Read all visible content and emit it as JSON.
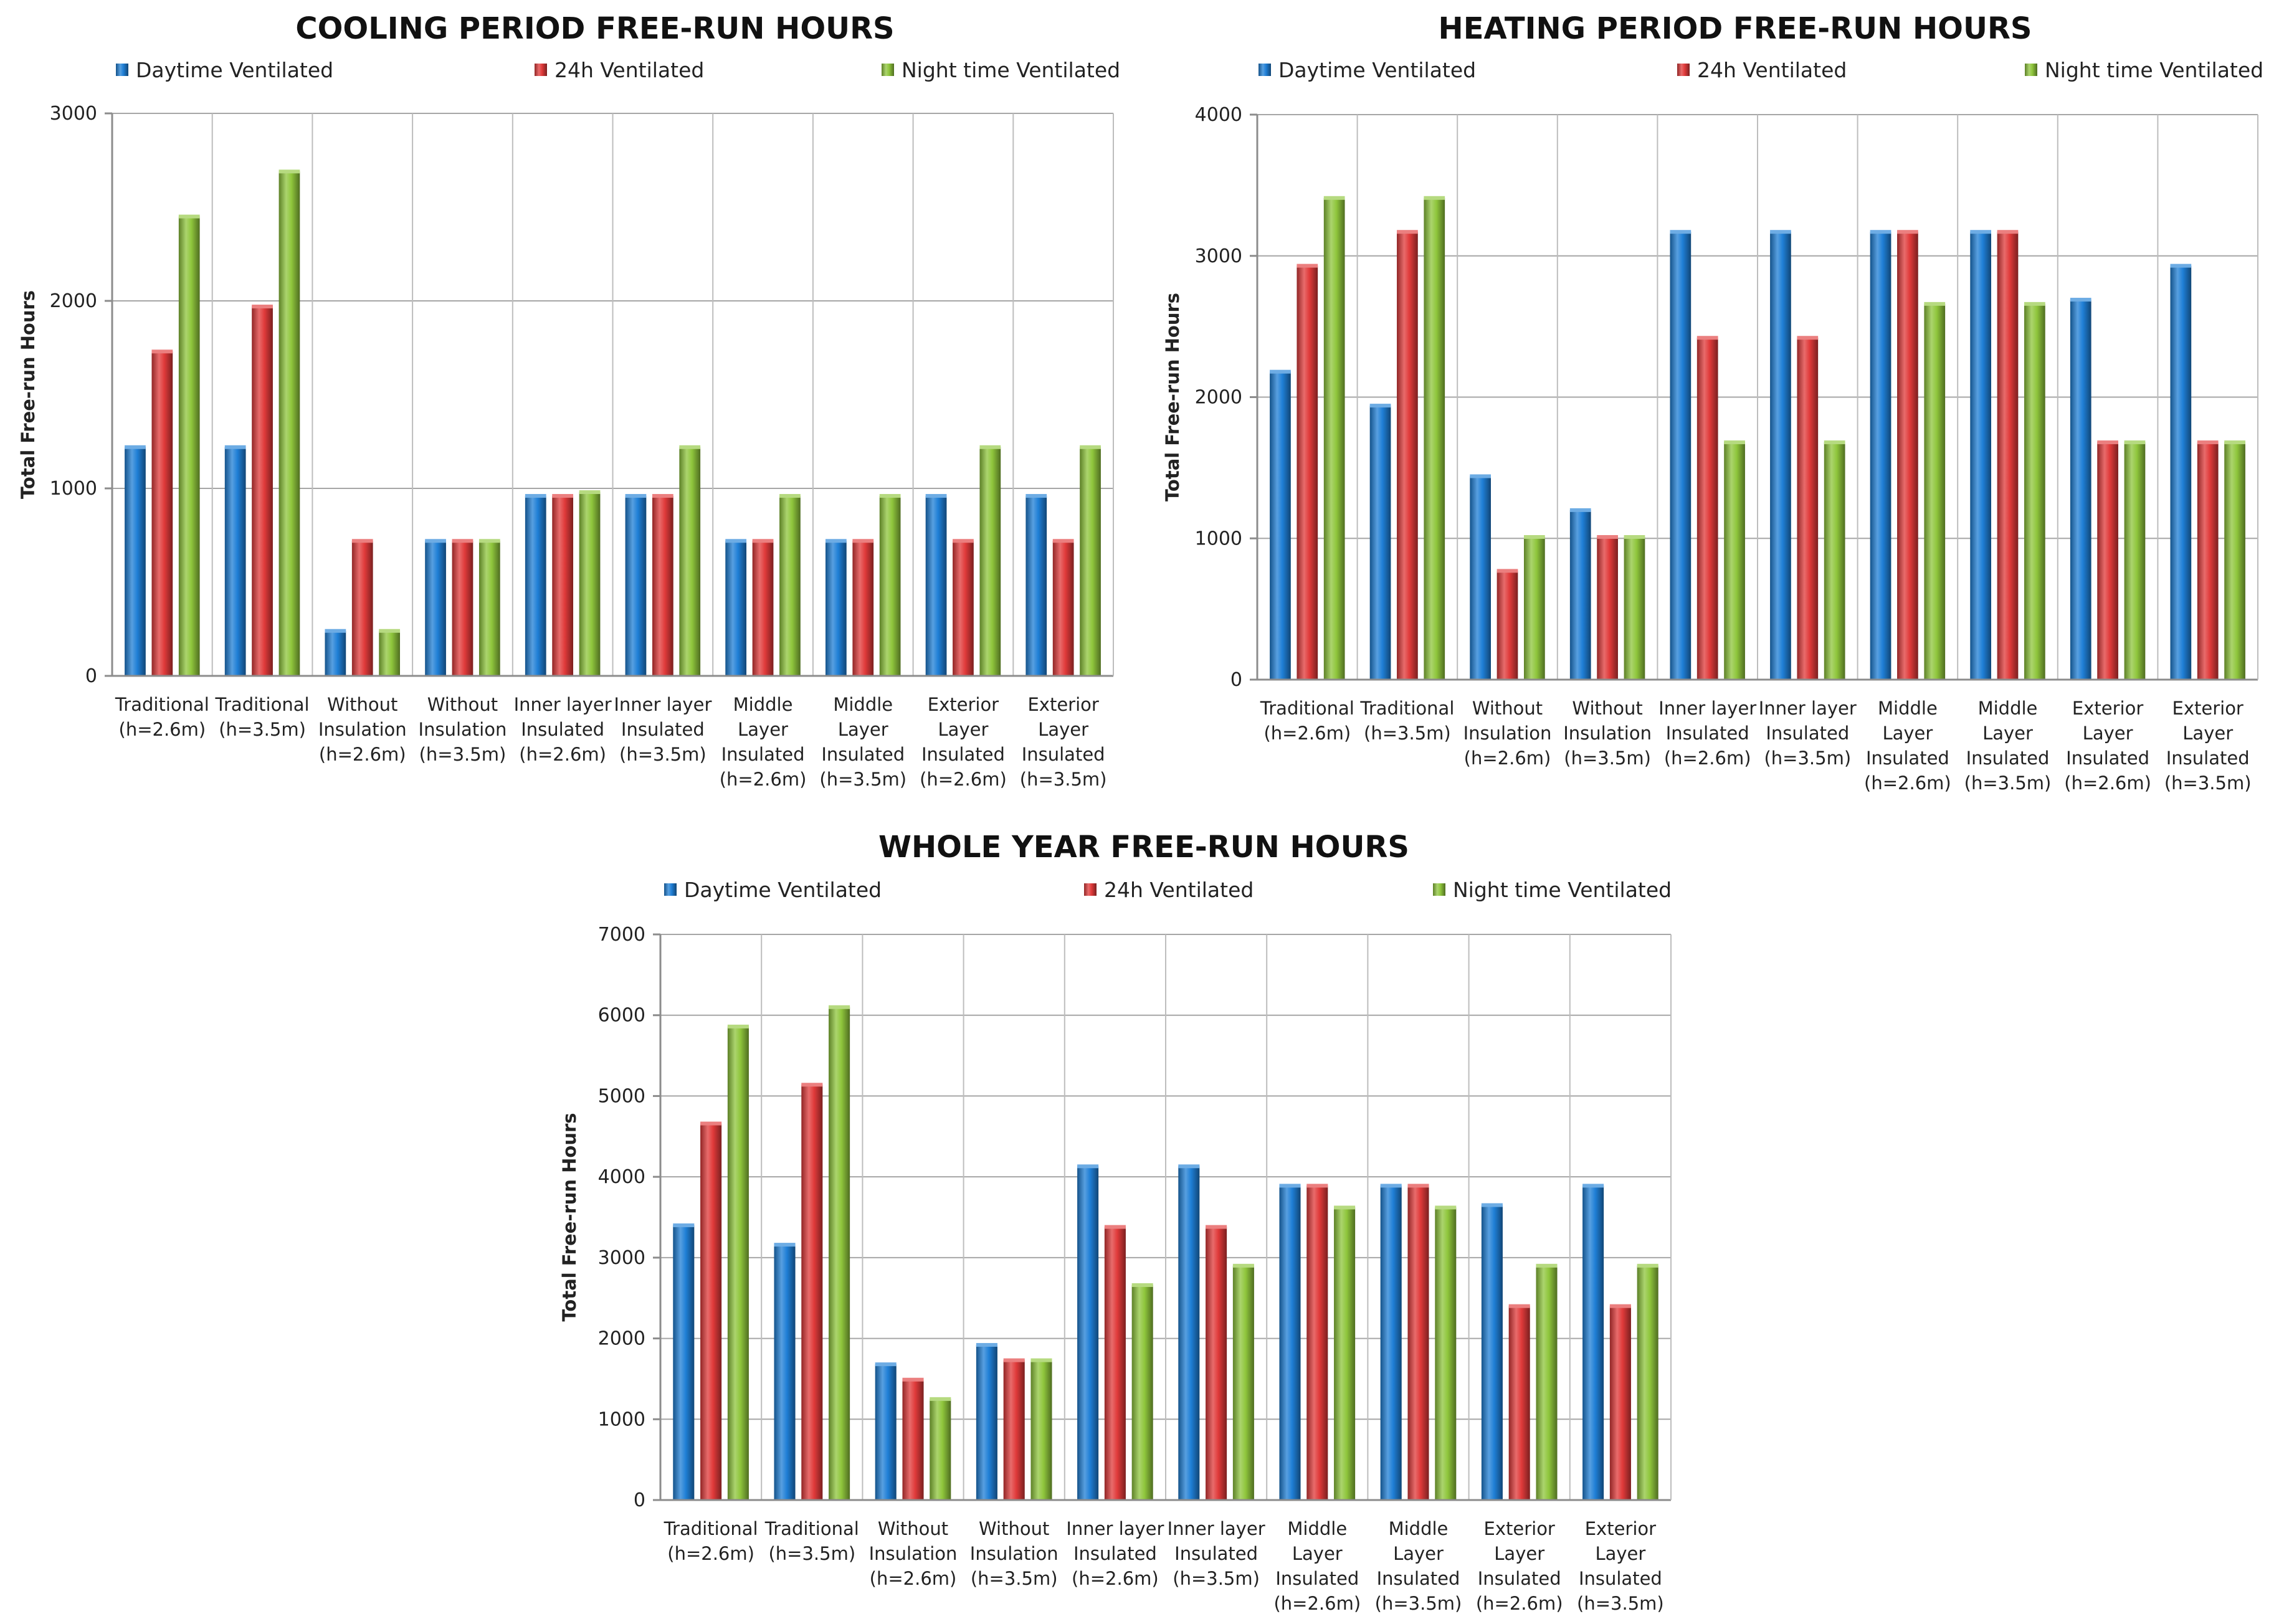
{
  "chart_data": [
    {
      "id": "cooling",
      "type": "bar",
      "title": "COOLING PERIOD FREE-RUN HOURS",
      "ylabel": "Total Free-run Hours",
      "ylim": [
        0,
        3000
      ],
      "yticks": [
        0,
        1000,
        2000,
        3000
      ],
      "grid": true,
      "legend_position": "top",
      "categories": [
        [
          "Traditional",
          "(h=2.6m)"
        ],
        [
          "Traditional",
          "(h=3.5m)"
        ],
        [
          "Without",
          "Insulation",
          "(h=2.6m)"
        ],
        [
          "Without",
          "Insulation",
          "(h=3.5m)"
        ],
        [
          "Inner layer",
          "Insulated",
          "(h=2.6m)"
        ],
        [
          "Inner layer",
          "Insulated",
          "(h=3.5m)"
        ],
        [
          "Middle",
          "Layer",
          "Insulated",
          "(h=2.6m)"
        ],
        [
          "Middle",
          "Layer",
          "Insulated",
          "(h=3.5m)"
        ],
        [
          "Exterior",
          "Layer",
          "Insulated",
          "(h=2.6m)"
        ],
        [
          "Exterior",
          "Layer",
          "Insulated",
          "(h=3.5m)"
        ]
      ],
      "series": [
        {
          "name": "Daytime Ventilated",
          "color": "#1f7fd6",
          "values": [
            1220,
            1220,
            240,
            720,
            960,
            960,
            720,
            720,
            960,
            960
          ]
        },
        {
          "name": "24h Ventilated",
          "color": "#e03a3a",
          "values": [
            1730,
            1970,
            720,
            720,
            960,
            960,
            720,
            720,
            720,
            720
          ]
        },
        {
          "name": "Night time Ventilated",
          "color": "#8fc63c",
          "values": [
            2450,
            2690,
            240,
            720,
            980,
            1220,
            960,
            960,
            1220,
            1220
          ]
        }
      ]
    },
    {
      "id": "heating",
      "type": "bar",
      "title": "HEATING PERIOD FREE-RUN HOURS",
      "ylabel": "Total Free-run Hours",
      "ylim": [
        0,
        4000
      ],
      "yticks": [
        0,
        1000,
        2000,
        3000,
        4000
      ],
      "grid": true,
      "legend_position": "top",
      "categories": [
        [
          "Traditional",
          "(h=2.6m)"
        ],
        [
          "Traditional",
          "(h=3.5m)"
        ],
        [
          "Without",
          "Insulation",
          "(h=2.6m)"
        ],
        [
          "Without",
          "Insulation",
          "(h=3.5m)"
        ],
        [
          "Inner layer",
          "Insulated",
          "(h=2.6m)"
        ],
        [
          "Inner layer",
          "Insulated",
          "(h=3.5m)"
        ],
        [
          "Middle",
          "Layer",
          "Insulated",
          "(h=2.6m)"
        ],
        [
          "Middle",
          "Layer",
          "Insulated",
          "(h=3.5m)"
        ],
        [
          "Exterior",
          "Layer",
          "Insulated",
          "(h=2.6m)"
        ],
        [
          "Exterior",
          "Layer",
          "Insulated",
          "(h=3.5m)"
        ]
      ],
      "series": [
        {
          "name": "Daytime Ventilated",
          "color": "#1f7fd6",
          "values": [
            2180,
            1940,
            1440,
            1200,
            3170,
            3170,
            3170,
            3170,
            2690,
            2930
          ]
        },
        {
          "name": "24h Ventilated",
          "color": "#e03a3a",
          "values": [
            2930,
            3170,
            770,
            1010,
            2420,
            2420,
            3170,
            3170,
            1680,
            1680
          ]
        },
        {
          "name": "Night time Ventilated",
          "color": "#8fc63c",
          "values": [
            3410,
            3410,
            1010,
            1010,
            1680,
            1680,
            2660,
            2660,
            1680,
            1680
          ]
        }
      ]
    },
    {
      "id": "year",
      "type": "bar",
      "title": "WHOLE YEAR FREE-RUN HOURS",
      "ylabel": "Total Free-run Hours",
      "ylim": [
        0,
        7000
      ],
      "yticks": [
        0,
        1000,
        2000,
        3000,
        4000,
        5000,
        6000,
        7000
      ],
      "grid": true,
      "legend_position": "top",
      "categories": [
        [
          "Traditional",
          "(h=2.6m)"
        ],
        [
          "Traditional",
          "(h=3.5m)"
        ],
        [
          "Without",
          "Insulation",
          "(h=2.6m)"
        ],
        [
          "Without",
          "Insulation",
          "(h=3.5m)"
        ],
        [
          "Inner layer",
          "Insulated",
          "(h=2.6m)"
        ],
        [
          "Inner layer",
          "Insulated",
          "(h=3.5m)"
        ],
        [
          "Middle",
          "Layer",
          "Insulated",
          "(h=2.6m)"
        ],
        [
          "Middle",
          "Layer",
          "Insulated",
          "(h=3.5m)"
        ],
        [
          "Exterior",
          "Layer",
          "Insulated",
          "(h=2.6m)"
        ],
        [
          "Exterior",
          "Layer",
          "Insulated",
          "(h=3.5m)"
        ]
      ],
      "series": [
        {
          "name": "Daytime Ventilated",
          "color": "#1f7fd6",
          "values": [
            3400,
            3160,
            1680,
            1920,
            4130,
            4130,
            3890,
            3890,
            3650,
            3890
          ]
        },
        {
          "name": "24h Ventilated",
          "color": "#e03a3a",
          "values": [
            4660,
            5140,
            1490,
            1730,
            3380,
            3380,
            3890,
            3890,
            2400,
            2400
          ]
        },
        {
          "name": "Night time Ventilated",
          "color": "#8fc63c",
          "values": [
            5860,
            6100,
            1250,
            1730,
            2660,
            2900,
            3620,
            3620,
            2900,
            2900
          ]
        }
      ]
    }
  ]
}
